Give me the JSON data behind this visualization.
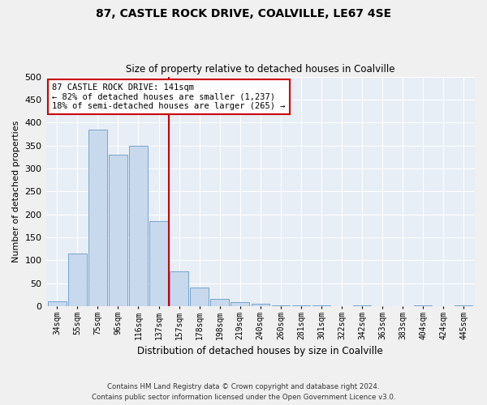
{
  "title": "87, CASTLE ROCK DRIVE, COALVILLE, LE67 4SE",
  "subtitle": "Size of property relative to detached houses in Coalville",
  "xlabel": "Distribution of detached houses by size in Coalville",
  "ylabel": "Number of detached properties",
  "bar_color": "#c8d9ed",
  "bar_edge_color": "#6699cc",
  "background_color": "#e8eef5",
  "figure_color": "#f0f0f0",
  "grid_color": "#ffffff",
  "categories": [
    "34sqm",
    "55sqm",
    "75sqm",
    "96sqm",
    "116sqm",
    "137sqm",
    "157sqm",
    "178sqm",
    "198sqm",
    "219sqm",
    "240sqm",
    "260sqm",
    "281sqm",
    "301sqm",
    "322sqm",
    "342sqm",
    "363sqm",
    "383sqm",
    "404sqm",
    "424sqm",
    "445sqm"
  ],
  "values": [
    10,
    115,
    385,
    330,
    350,
    185,
    75,
    40,
    15,
    8,
    5,
    2,
    1,
    1,
    0,
    2,
    0,
    0,
    2,
    0,
    2
  ],
  "ylim": [
    0,
    500
  ],
  "yticks": [
    0,
    50,
    100,
    150,
    200,
    250,
    300,
    350,
    400,
    450,
    500
  ],
  "property_bin_index": 5,
  "annotation_text": "87 CASTLE ROCK DRIVE: 141sqm\n← 82% of detached houses are smaller (1,237)\n18% of semi-detached houses are larger (265) →",
  "vline_color": "#cc0000",
  "annotation_box_color": "#ffffff",
  "annotation_box_edge": "#cc0000",
  "footer_line1": "Contains HM Land Registry data © Crown copyright and database right 2024.",
  "footer_line2": "Contains public sector information licensed under the Open Government Licence v3.0."
}
